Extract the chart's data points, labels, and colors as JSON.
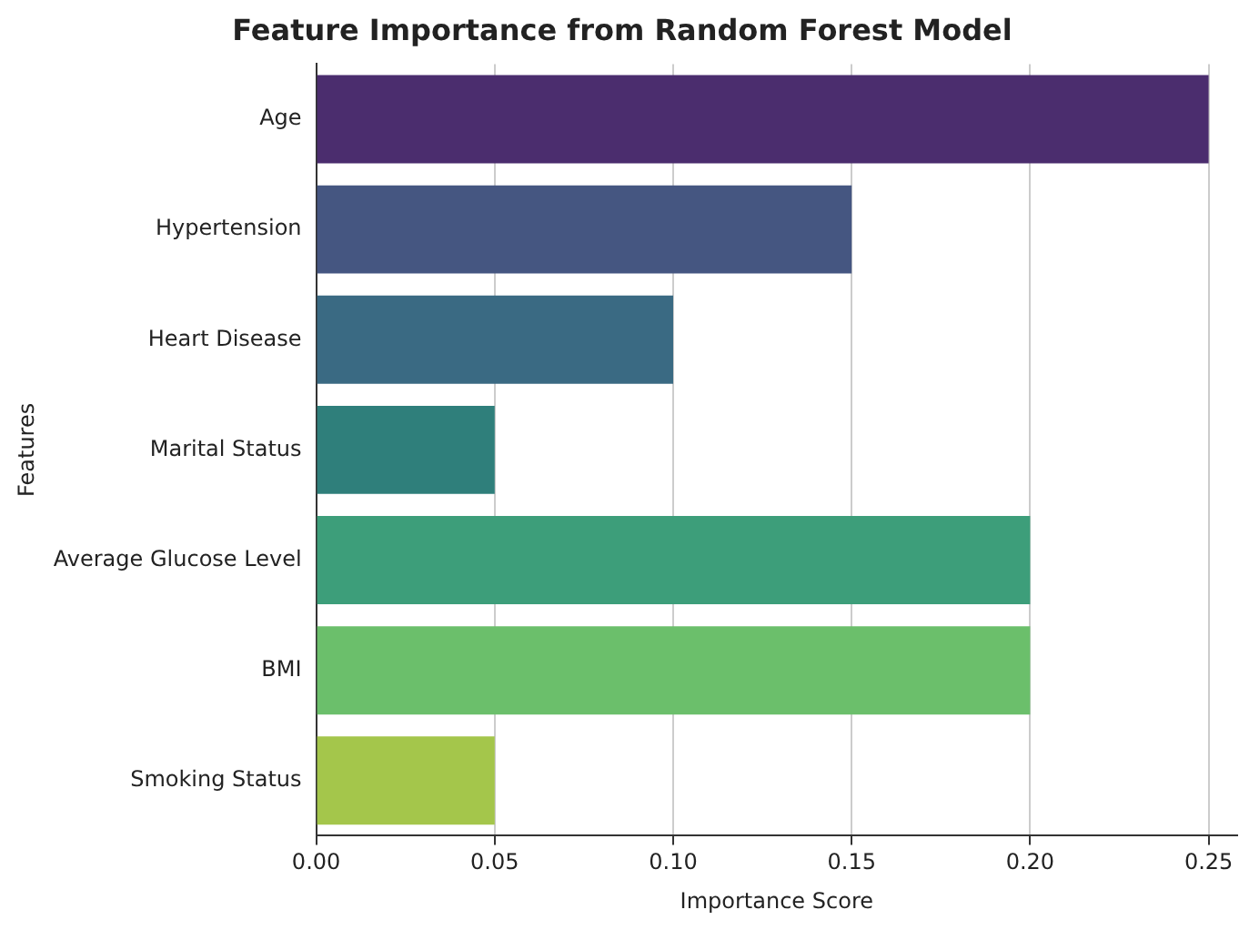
{
  "chart_data": {
    "type": "bar",
    "orientation": "horizontal",
    "title": "Feature Importance from Random Forest Model",
    "xlabel": "Importance Score",
    "ylabel": "Features",
    "categories": [
      "Age",
      "Hypertension",
      "Heart Disease",
      "Marital Status",
      "Average Glucose Level",
      "BMI",
      "Smoking Status"
    ],
    "values": [
      0.25,
      0.15,
      0.1,
      0.05,
      0.2,
      0.2,
      0.05
    ],
    "colors": [
      "#4b2d6e",
      "#455681",
      "#3a6a83",
      "#2f7f7b",
      "#3d9e7a",
      "#6bbf6b",
      "#a4c64b"
    ],
    "xlim": [
      0,
      0.258
    ],
    "xticks": [
      {
        "value": 0,
        "label": "0.00"
      },
      {
        "value": 0.05,
        "label": "0.05"
      },
      {
        "value": 0.1,
        "label": "0.10"
      },
      {
        "value": 0.15,
        "label": "0.15"
      },
      {
        "value": 0.2,
        "label": "0.20"
      },
      {
        "value": 0.25,
        "label": "0.25"
      }
    ],
    "grid": "x",
    "legend": false
  }
}
